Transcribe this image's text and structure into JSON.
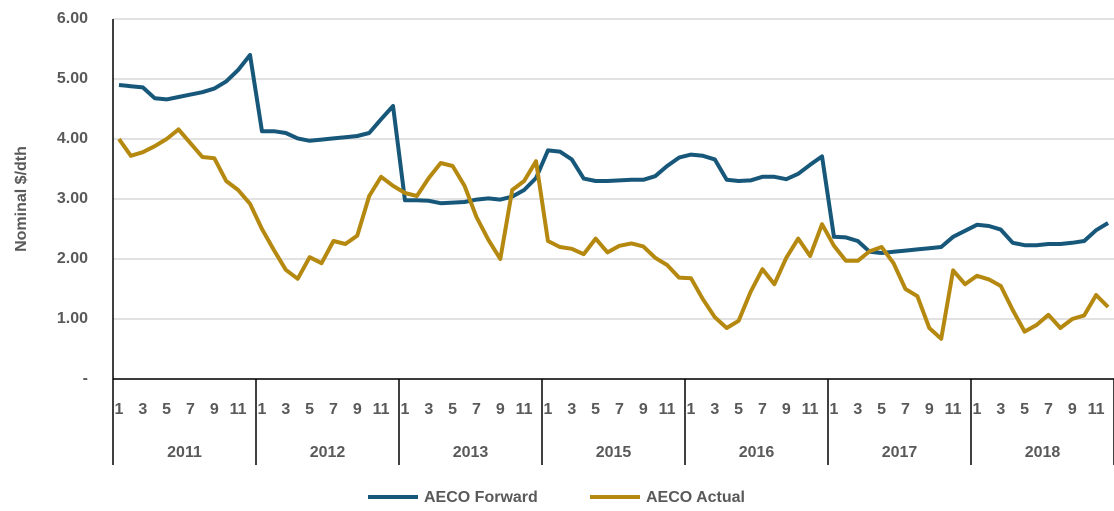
{
  "chart_data": {
    "type": "line",
    "y_label": "Nominal $/dth",
    "categories": [
      1,
      null,
      3,
      null,
      5,
      null,
      7,
      null,
      9,
      null,
      11,
      null,
      1,
      null,
      3,
      null,
      5,
      null,
      7,
      null,
      9,
      null,
      11,
      null,
      1,
      null,
      3,
      null,
      5,
      null,
      7,
      null,
      9,
      null,
      11,
      null,
      1,
      null,
      3,
      null,
      5,
      null,
      7,
      null,
      9,
      null,
      11,
      null,
      1,
      null,
      3,
      null,
      5,
      null,
      7,
      null,
      9,
      null,
      11,
      null,
      1,
      null,
      3,
      null,
      5,
      null,
      7,
      null,
      9,
      null,
      11,
      null,
      1,
      null,
      3,
      null,
      5,
      null,
      7,
      null,
      9,
      null,
      11,
      null
    ],
    "groups": [
      2011,
      2012,
      2013,
      2015,
      2016,
      2017,
      2018
    ],
    "series": [
      {
        "name": "AECO Forward",
        "color": "#17577a",
        "values": [
          4.9,
          4.88,
          4.86,
          4.68,
          4.66,
          4.7,
          4.74,
          4.78,
          4.84,
          4.96,
          5.15,
          5.4,
          4.13,
          4.13,
          4.1,
          4.01,
          3.97,
          3.99,
          4.01,
          4.03,
          4.05,
          4.1,
          4.33,
          4.55,
          2.98,
          2.98,
          2.97,
          2.93,
          2.94,
          2.95,
          2.99,
          3.01,
          2.99,
          3.04,
          3.15,
          3.35,
          3.81,
          3.79,
          3.66,
          3.34,
          3.3,
          3.3,
          3.31,
          3.32,
          3.32,
          3.38,
          3.55,
          3.69,
          3.74,
          3.72,
          3.66,
          3.32,
          3.3,
          3.31,
          3.37,
          3.37,
          3.33,
          3.42,
          3.57,
          3.71,
          2.37,
          2.36,
          2.3,
          2.12,
          2.1,
          2.12,
          2.14,
          2.16,
          2.18,
          2.2,
          2.37,
          2.47,
          2.57,
          2.55,
          2.49,
          2.27,
          2.23,
          2.23,
          2.25,
          2.25,
          2.27,
          2.3,
          2.48,
          2.6
        ]
      },
      {
        "name": "AECO Actual",
        "color": "#b5880f",
        "values": [
          4.0,
          3.72,
          3.78,
          3.88,
          4.0,
          4.16,
          3.93,
          3.7,
          3.68,
          3.3,
          3.15,
          2.92,
          2.5,
          2.15,
          1.82,
          1.67,
          2.03,
          1.93,
          2.3,
          2.25,
          2.39,
          3.05,
          3.37,
          3.22,
          3.1,
          3.05,
          3.35,
          3.6,
          3.55,
          3.22,
          2.7,
          2.32,
          2.0,
          3.15,
          3.3,
          3.63,
          2.3,
          2.2,
          2.17,
          2.08,
          2.34,
          2.11,
          2.22,
          2.26,
          2.21,
          2.02,
          1.9,
          1.69,
          1.68,
          1.33,
          1.03,
          0.85,
          0.97,
          1.45,
          1.83,
          1.58,
          2.02,
          2.34,
          2.05,
          2.58,
          2.22,
          1.97,
          1.97,
          2.13,
          2.2,
          1.93,
          1.5,
          1.38,
          0.85,
          0.67,
          1.81,
          1.58,
          1.72,
          1.66,
          1.55,
          1.15,
          0.79,
          0.9,
          1.07,
          0.85,
          1.0,
          1.06,
          1.4,
          1.2
        ]
      }
    ],
    "ylim": [
      0,
      6
    ],
    "yticks": [
      {
        "value": 0,
        "label": "-"
      },
      {
        "value": 1,
        "label": "1.00"
      },
      {
        "value": 2,
        "label": "2.00"
      },
      {
        "value": 3,
        "label": "3.00"
      },
      {
        "value": 4,
        "label": "4.00"
      },
      {
        "value": 5,
        "label": "5.00"
      },
      {
        "value": 6,
        "label": "6.00"
      }
    ],
    "grid": true,
    "legend": "bottom"
  }
}
